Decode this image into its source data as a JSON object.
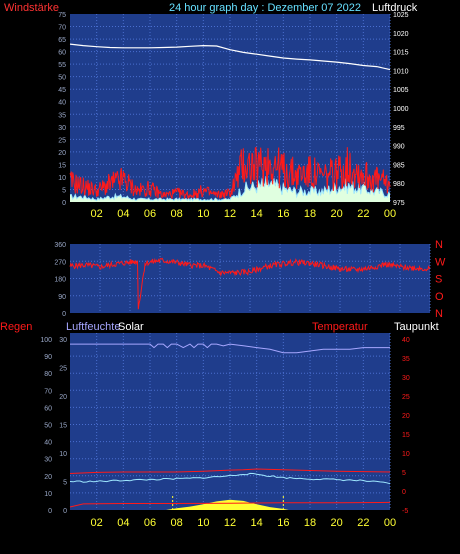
{
  "header": {
    "title": "24 hour graph day : Dezember 07 2022",
    "left_label": "Windstärke",
    "right_label": "Luftdruck"
  },
  "colors": {
    "panel": "#1f3d8c",
    "grid": "#4a6fd0",
    "red": "#ff1a1a",
    "cyan": "#9fe8ff",
    "pale": "#e0ffe0",
    "white": "#ffffff",
    "yellow": "#ffff33",
    "axis_yellow": "#ffff33",
    "purple": "#a7a7ff"
  },
  "chart_data": [
    {
      "type": "line",
      "title": "24 hour graph day : Dezember 07 2022",
      "x_ticks": [
        "02",
        "04",
        "06",
        "08",
        "10",
        "12",
        "14",
        "16",
        "18",
        "20",
        "22",
        "00"
      ],
      "y_left": {
        "label": "Windstärke",
        "range": [
          0,
          75
        ],
        "ticks": [
          0,
          5,
          10,
          15,
          20,
          25,
          30,
          35,
          40,
          45,
          50,
          55,
          60,
          65,
          70,
          75
        ]
      },
      "y_right": {
        "label": "Luftdruck",
        "range": [
          975,
          1025
        ],
        "ticks": [
          975,
          980,
          985,
          990,
          995,
          1000,
          1005,
          1010,
          1015,
          1020,
          1025
        ]
      },
      "series": [
        {
          "name": "Luftdruck",
          "axis": "right",
          "x": [
            0,
            1,
            2,
            3,
            4,
            5,
            6,
            7,
            8,
            9,
            10,
            11,
            12,
            13,
            14,
            15,
            16,
            17,
            18,
            19,
            20,
            21,
            22,
            23,
            24
          ],
          "values": [
            1017.0,
            1016.6,
            1016.3,
            1016.1,
            1016.0,
            1016.0,
            1016.0,
            1016.1,
            1016.2,
            1016.4,
            1016.6,
            1016.5,
            1015.5,
            1014.8,
            1014.3,
            1013.8,
            1013.3,
            1013.0,
            1012.8,
            1012.5,
            1012.2,
            1011.8,
            1011.3,
            1011.0,
            1010.2
          ]
        },
        {
          "name": "Windböen",
          "axis": "left",
          "x": [
            0,
            1,
            2,
            3,
            4,
            5,
            6,
            7,
            8,
            9,
            10,
            11,
            12,
            13,
            14,
            15,
            16,
            17,
            18,
            19,
            20,
            21,
            22,
            23,
            24
          ],
          "values": [
            9,
            7,
            5,
            8,
            10,
            5,
            6,
            3,
            4,
            3,
            5,
            3,
            4,
            17,
            15,
            18,
            14,
            12,
            13,
            11,
            13,
            16,
            12,
            10,
            8
          ]
        },
        {
          "name": "Windstärke",
          "axis": "left",
          "x": [
            0,
            1,
            2,
            3,
            4,
            5,
            6,
            7,
            8,
            9,
            10,
            11,
            12,
            13,
            14,
            15,
            16,
            17,
            18,
            19,
            20,
            21,
            22,
            23,
            24
          ],
          "values": [
            2,
            2,
            1,
            2,
            2,
            1,
            1,
            1,
            1,
            1,
            1,
            1,
            1,
            5,
            6,
            7,
            5,
            4,
            4,
            4,
            6,
            6,
            5,
            4,
            3
          ]
        }
      ]
    },
    {
      "type": "line",
      "x_ticks": [],
      "y_left": {
        "range": [
          0,
          360
        ],
        "ticks": [
          0,
          90,
          180,
          270,
          360
        ]
      },
      "y_right_labels": [
        "N",
        "W",
        "S",
        "O",
        "N"
      ],
      "series": [
        {
          "name": "Windrichtung",
          "x": [
            0,
            1,
            2,
            3,
            4,
            4.5,
            4.55,
            5,
            6,
            7,
            8,
            9,
            10,
            11,
            12,
            13,
            14,
            15,
            16,
            17,
            18,
            19,
            20,
            21,
            22,
            23,
            24
          ],
          "values": [
            245,
            250,
            240,
            255,
            265,
            270,
            20,
            260,
            275,
            265,
            250,
            245,
            210,
            210,
            215,
            240,
            255,
            265,
            260,
            245,
            230,
            225,
            235,
            255,
            240,
            235,
            230
          ]
        }
      ]
    },
    {
      "type": "line",
      "x_ticks": [
        "02",
        "04",
        "06",
        "08",
        "10",
        "12",
        "14",
        "16",
        "18",
        "20",
        "22",
        "00"
      ],
      "labels": [
        "Regen",
        "Luftfeuchte",
        "Solar",
        "Temperatur",
        "Taupunkt"
      ],
      "y_left": {
        "range": [
          0,
          100
        ],
        "ticks": [
          0,
          10,
          20,
          30,
          40,
          50,
          60,
          70,
          80,
          90,
          100
        ]
      },
      "y_left2": {
        "range": [
          0,
          30
        ],
        "ticks": [
          0,
          5,
          10,
          15,
          20,
          25,
          30
        ]
      },
      "y_right": {
        "range": [
          -5,
          40
        ],
        "ticks": [
          -5,
          0,
          5,
          10,
          15,
          20,
          25,
          30,
          35,
          40
        ]
      },
      "series": [
        {
          "name": "Luftfeuchte",
          "axis": "left",
          "x": [
            0,
            2,
            4,
            6,
            6.3,
            6.6,
            7,
            7.3,
            7.6,
            8,
            8.5,
            9,
            9.3,
            9.6,
            10,
            10.3,
            10.6,
            11,
            11.5,
            12,
            13,
            14,
            15,
            16,
            17,
            18,
            19,
            20,
            21,
            22,
            23,
            24
          ],
          "values": [
            97,
            97,
            97,
            97,
            95,
            97,
            97,
            95,
            97,
            97,
            95,
            97,
            95,
            97,
            97,
            95,
            97,
            97,
            96,
            97,
            96,
            95,
            94,
            92,
            92,
            93,
            94,
            94,
            94,
            95,
            95,
            95
          ]
        },
        {
          "name": "Temperatur",
          "axis": "right",
          "x": [
            0,
            2,
            4,
            6,
            8,
            10,
            12,
            13,
            14,
            16,
            18,
            20,
            22,
            24
          ],
          "values": [
            4.6,
            4.9,
            5.0,
            5.0,
            5.0,
            5.2,
            5.5,
            5.6,
            5.8,
            5.6,
            5.4,
            5.2,
            5.1,
            5.0
          ]
        },
        {
          "name": "Taupunkt",
          "axis": "right",
          "x": [
            0,
            2,
            4,
            6,
            8,
            10,
            12,
            13,
            14,
            16,
            18,
            20,
            22,
            24
          ],
          "values": [
            2.5,
            2.5,
            2.8,
            3.0,
            3.2,
            3.5,
            4.0,
            4.5,
            4.4,
            3.5,
            3.2,
            3.0,
            2.7,
            2.0
          ]
        },
        {
          "name": "Regen",
          "axis": "right",
          "x": [
            0,
            1,
            4,
            8,
            12,
            16,
            20,
            24
          ],
          "values": [
            -4.2,
            -3.4,
            -3.3,
            -3.3,
            -3.2,
            -3.1,
            -3.1,
            -3.0
          ]
        },
        {
          "name": "Solar",
          "axis": "left2",
          "x": [
            7.2,
            8,
            9,
            10,
            11,
            12,
            13,
            14,
            15,
            16,
            16.4
          ],
          "values": [
            0,
            0.3,
            0.6,
            1.0,
            1.5,
            1.8,
            1.6,
            1.0,
            0.5,
            0.2,
            0
          ]
        }
      ]
    }
  ]
}
